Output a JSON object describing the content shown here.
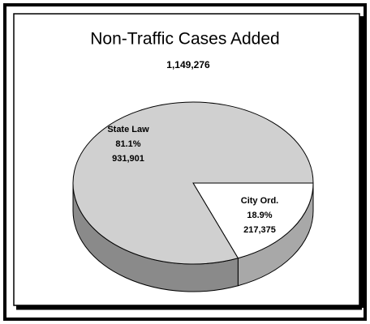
{
  "chart_data": {
    "type": "pie3d",
    "title": "Non-Traffic Cases Added",
    "subtitle": "1,149,276",
    "categories": [
      "State Law",
      "City Ord."
    ],
    "values": [
      81.1,
      18.9
    ],
    "value_labels": [
      "81.1%",
      "18.9%"
    ],
    "counts": [
      931901,
      217375
    ],
    "count_labels": [
      "931,901",
      "217,375"
    ],
    "colors": [
      "#d0d0d0",
      "#ffffff"
    ],
    "side_colors": [
      "#8a8a8a",
      "#a8a8a8"
    ]
  }
}
